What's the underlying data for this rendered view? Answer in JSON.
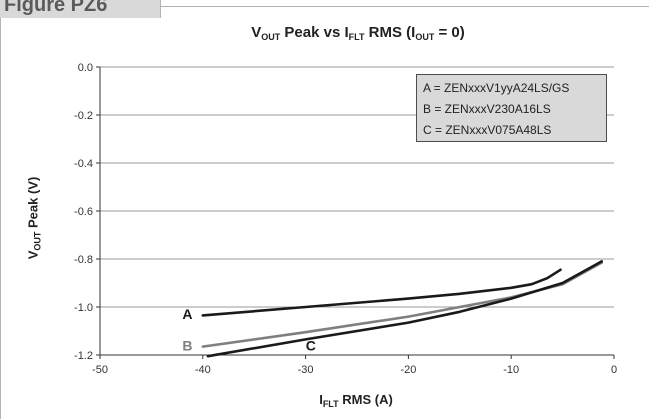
{
  "figure_label": "Figure PZ6",
  "chart_data": {
    "type": "line",
    "title": {
      "pre": "V",
      "sub1": "OUT",
      "mid1": " Peak vs I",
      "sub2": "FLT",
      "mid2": " RMS (I",
      "sub3": "OUT",
      "post": " = 0)"
    },
    "ylabel": {
      "pre": "V",
      "sub": "OUT",
      "post": " Peak (V)"
    },
    "xlabel": {
      "pre": "I",
      "sub": "FLT",
      "post": " RMS (A)"
    },
    "xlim": [
      -50,
      0
    ],
    "ylim": [
      -1.2,
      0.0
    ],
    "x_ticks": [
      -50,
      -40,
      -30,
      -20,
      -10,
      0
    ],
    "x_tick_labels": [
      "-50",
      "-40",
      "-30",
      "-20",
      "-10",
      "0"
    ],
    "y_ticks": [
      0.0,
      -0.2,
      -0.4,
      -0.6,
      -0.8,
      -1.0,
      -1.2
    ],
    "y_tick_labels": [
      "0.0",
      "-0.2",
      "-0.4",
      "-0.6",
      "-0.8",
      "-1.0",
      "-1.2"
    ],
    "grid": "horizontal",
    "legend": {
      "position": "top-right",
      "entries": [
        "A = ZENxxxV1yyA24LS/GS",
        "B = ZENxxxV230A16LS",
        "C = ZENxxxV075A48LS"
      ]
    },
    "series": [
      {
        "label": "A",
        "color": "#1a1a1a",
        "x": [
          -40,
          -30,
          -20,
          -15,
          -10,
          -8,
          -6.5,
          -5.2
        ],
        "y": [
          -1.035,
          -1.0,
          -0.965,
          -0.945,
          -0.92,
          -0.905,
          -0.88,
          -0.845
        ]
      },
      {
        "label": "B",
        "color": "#7f7f7f",
        "x": [
          -40,
          -30,
          -20,
          -10,
          -5,
          -1.2
        ],
        "y": [
          -1.165,
          -1.105,
          -1.04,
          -0.96,
          -0.905,
          -0.815
        ]
      },
      {
        "label": "C",
        "color": "#1a1a1a",
        "x": [
          -39.5,
          -30,
          -20,
          -15,
          -10,
          -5,
          -1.2
        ],
        "y": [
          -1.205,
          -1.135,
          -1.065,
          -1.02,
          -0.965,
          -0.9,
          -0.81
        ]
      }
    ],
    "annotations": [
      {
        "text": "A",
        "x": -41,
        "y": -1.03,
        "color": "#1a1a1a"
      },
      {
        "text": "B",
        "x": -41,
        "y": -1.16,
        "color": "#7f7f7f"
      },
      {
        "text": "C",
        "x": -29,
        "y": -1.16,
        "color": "#1a1a1a"
      }
    ]
  }
}
